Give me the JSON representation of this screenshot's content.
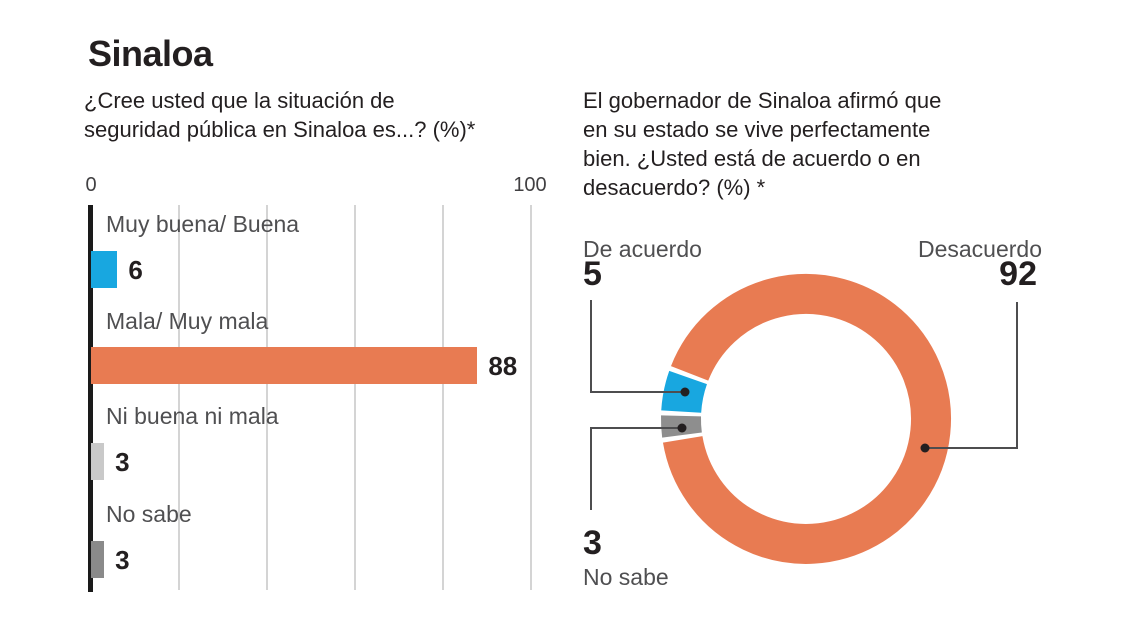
{
  "title": "Sinaloa",
  "colors": {
    "blue": "#18a7e0",
    "orange": "#e87b52",
    "light_gray": "#c9c9c9",
    "dark_gray": "#8a8a8a",
    "donut_gray": "#8e8e8e",
    "gridline": "#d4d4d4",
    "leader_line": "#4d4d4f",
    "dot": "#231f20"
  },
  "bar_chart": {
    "question": "¿Cree usted que la situación de\nseguridad pública en Sinaloa es...? (%)*",
    "axis": {
      "min_label": "0",
      "max_label": "100"
    },
    "rows": [
      {
        "label": "Muy buena/ Buena",
        "value": 6,
        "value_label": "6",
        "color": "#18a7e0"
      },
      {
        "label": "Mala/ Muy mala",
        "value": 88,
        "value_label": "88",
        "color": "#e87b52"
      },
      {
        "label": "Ni buena ni mala",
        "value": 3,
        "value_label": "3",
        "color": "#c9c9c9"
      },
      {
        "label": "No sabe",
        "value": 3,
        "value_label": "3",
        "color": "#8a8a8a"
      }
    ]
  },
  "donut_chart": {
    "question": "El gobernador de Sinaloa afirmó que\nen su estado se vive perfectamente\nbien. ¿Usted está de acuerdo o en\ndesacuerdo? (%) *",
    "segments": [
      {
        "label": "Desacuerdo",
        "value": 92,
        "value_label": "92",
        "color": "#e87b52"
      },
      {
        "label": "No sabe",
        "value": 3,
        "value_label": "3",
        "color": "#8e8e8e"
      },
      {
        "label": "De acuerdo",
        "value": 5,
        "value_label": "5",
        "color": "#18a7e0"
      }
    ],
    "callouts": {
      "de_acuerdo_label": "De acuerdo",
      "de_acuerdo_value": "5",
      "desacuerdo_label": "Desacuerdo",
      "desacuerdo_value": "92",
      "no_sabe_label": "No sabe",
      "no_sabe_value": "3"
    }
  },
  "chart_data": [
    {
      "type": "bar",
      "orientation": "horizontal",
      "title": "¿Cree usted que la situación de seguridad pública en Sinaloa es...? (%)*",
      "categories": [
        "Muy buena/ Buena",
        "Mala/ Muy mala",
        "Ni buena ni mala",
        "No sabe"
      ],
      "values": [
        6,
        88,
        3,
        3
      ],
      "xlim": [
        0,
        100
      ],
      "tick_labels": [
        "0",
        "100"
      ],
      "grid": true,
      "data_labels": true
    },
    {
      "type": "pie",
      "subtype": "donut",
      "title": "El gobernador de Sinaloa afirmó que en su estado se vive perfectamente bien. ¿Usted está de acuerdo o en desacuerdo? (%) *",
      "categories": [
        "De acuerdo",
        "Desacuerdo",
        "No sabe"
      ],
      "values": [
        5,
        92,
        3
      ],
      "data_labels": true,
      "legend_position": "callouts"
    }
  ]
}
